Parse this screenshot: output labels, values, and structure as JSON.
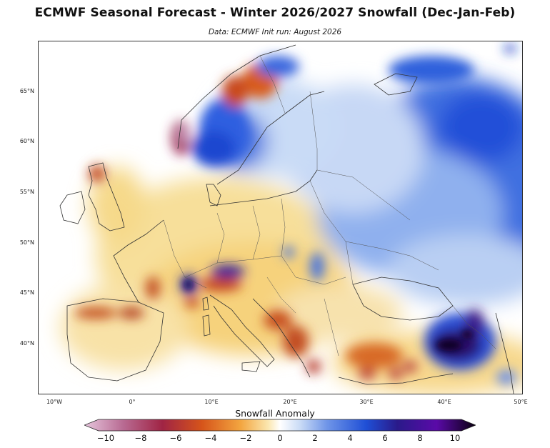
{
  "header": {
    "title": "ECMWF Seasonal Forecast - Winter 2026/2027 Snowfall (Dec-Jan-Feb)",
    "subtitle": "Data: ECMWF   Init run: August 2026"
  },
  "axes": {
    "lat_labels": [
      "65°N",
      "60°N",
      "55°N",
      "50°N",
      "45°N",
      "40°N"
    ],
    "lon_labels": [
      "10°W",
      "0°",
      "10°E",
      "20°E",
      "30°E",
      "40°E",
      "50°E"
    ]
  },
  "colorbar": {
    "title": "Snowfall Anomaly",
    "ticks": [
      "−10",
      "−8",
      "−6",
      "−4",
      "−2",
      "0",
      "2",
      "4",
      "6",
      "8",
      "10"
    ],
    "colors": {
      "deficit_strong": "#8b1a4a",
      "deficit_mid": "#d6541a",
      "deficit_weak": "#f6d98a",
      "neutral": "#ffffff",
      "surplus_weak": "#a9c7ef",
      "surplus_mid": "#1f4fd6",
      "surplus_strong": "#2a0a6a"
    }
  }
}
